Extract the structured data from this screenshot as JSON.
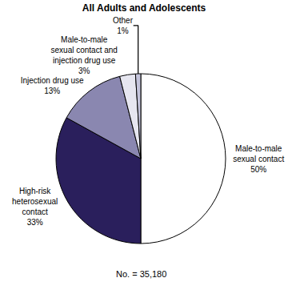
{
  "chart_data": {
    "type": "pie",
    "title": "All Adults and Adolescents",
    "categories": [
      "Male-to-male sexual contact",
      "High-risk heterosexual contact",
      "Injection drug use",
      "Male-to-male sexual contact and injection drug use",
      "Other"
    ],
    "values": [
      50,
      33,
      13,
      3,
      1
    ],
    "value_labels": [
      "50%",
      "33%",
      "13%",
      "3%",
      "1%"
    ],
    "colors": [
      "#ffffff",
      "#2a1f5c",
      "#8a87b0",
      "#e6e6f0",
      "#c4c4dc"
    ],
    "data_labels": true,
    "annotations": [
      "No. = 35,180"
    ]
  }
}
